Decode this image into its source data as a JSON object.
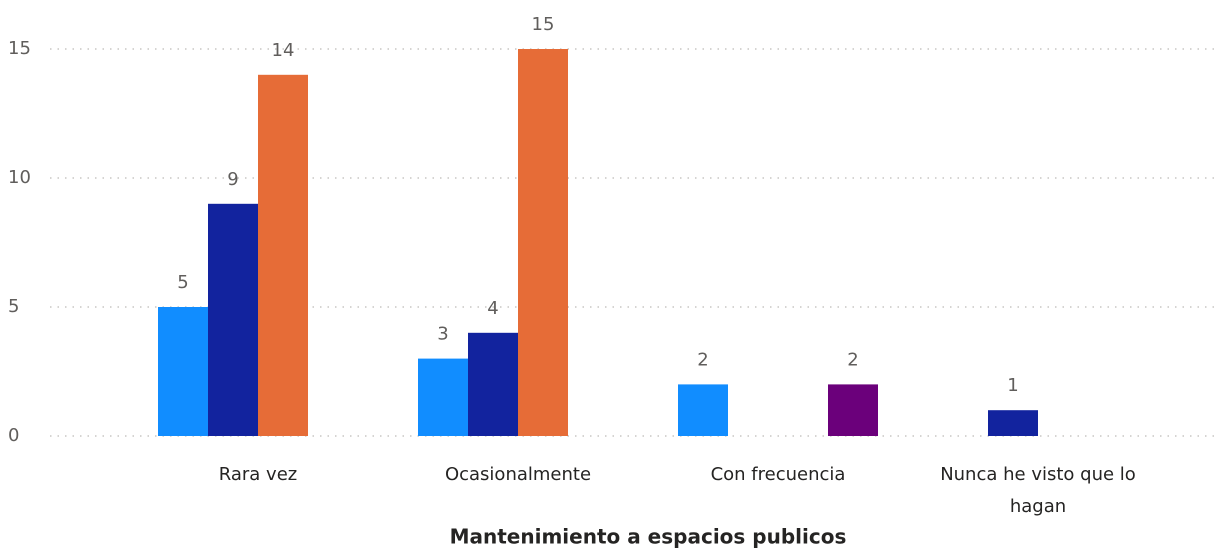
{
  "chart_data": {
    "type": "bar",
    "x_label": "Mantenimiento a espacios publicos",
    "categories": [
      "Rara vez",
      "Ocasionalmente",
      "Con frecuencia",
      "Nunca he visto que lo hagan"
    ],
    "series": [
      {
        "color": "#118dff",
        "values": [
          5,
          3,
          2,
          null
        ]
      },
      {
        "color": "#12239e",
        "values": [
          9,
          4,
          null,
          1
        ]
      },
      {
        "color": "#e66c37",
        "values": [
          14,
          15,
          null,
          null
        ]
      },
      {
        "color": "#6b007b",
        "values": [
          null,
          null,
          2,
          null
        ]
      }
    ],
    "ylim": [
      0,
      15
    ],
    "yticks": [
      0,
      5,
      10,
      15
    ],
    "grid": true
  }
}
